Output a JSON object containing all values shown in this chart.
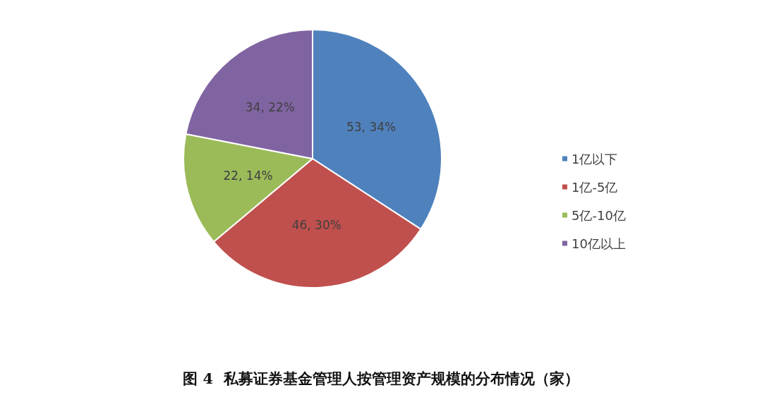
{
  "chart_data": {
    "type": "pie",
    "title": "图 4  私募证券基金管理人按管理资产规模的分布情况（家）",
    "categories": [
      "1亿以下",
      "1亿-5亿",
      "5亿-10亿",
      "10亿以上"
    ],
    "values": [
      53,
      46,
      22,
      34
    ],
    "colors": [
      "#4f81bd",
      "#c0504d",
      "#9bbb59",
      "#8064a2"
    ],
    "value_labels": [
      "53, 34%",
      "46, 30%",
      "22, 14%",
      "34, 22%"
    ],
    "legend": "right"
  }
}
